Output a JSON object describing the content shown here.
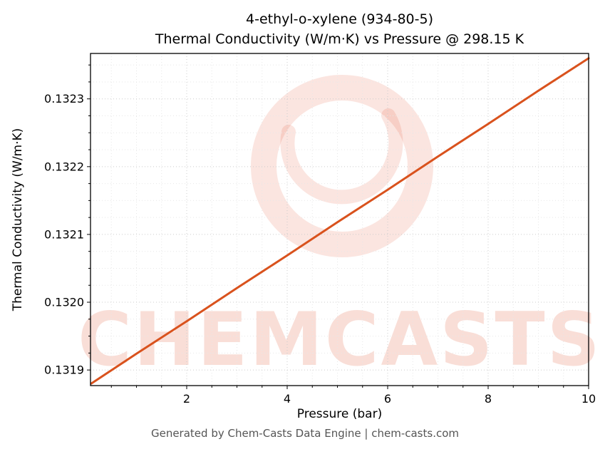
{
  "chart_data": {
    "type": "line",
    "title_line1": "4-ethyl-o-xylene (934-80-5)",
    "title_line2": "Thermal Conductivity (W/m·K) vs Pressure @ 298.15 K",
    "xlabel": "Pressure (bar)",
    "ylabel": "Thermal Conductivity (W/m·K)",
    "footer": "Generated by Chem-Casts Data Engine | chem-casts.com",
    "x": [
      0.1,
      1,
      2,
      3,
      4,
      5,
      6,
      7,
      8,
      9,
      10
    ],
    "y": [
      0.13188,
      0.131924,
      0.131972,
      0.132021,
      0.132069,
      0.132118,
      0.132166,
      0.132215,
      0.132263,
      0.132312,
      0.13236
    ],
    "xlim": [
      0.085,
      10
    ],
    "ylim": [
      0.131877,
      0.132367
    ],
    "xticks": [
      2,
      4,
      6,
      8,
      10
    ],
    "xtick_labels": [
      "2",
      "4",
      "6",
      "8",
      "10"
    ],
    "yticks": [
      0.1319,
      0.132,
      0.1321,
      0.1322,
      0.1323
    ],
    "ytick_labels": [
      "0.1319",
      "0.1320",
      "0.1321",
      "0.1322",
      "0.1323"
    ],
    "x_minor_step": 0.5,
    "y_minor_step": 2.5e-05,
    "grid": true,
    "line_color": "#d9521d",
    "grid_major_color": "#cccccc",
    "grid_minor_color": "#e7e7e7",
    "spine_color": "#000000",
    "watermark": {
      "text": "CHEMCASTS",
      "color": "#e04a22",
      "text_opacity": 0.18,
      "logo_opacity": 0.14
    }
  }
}
